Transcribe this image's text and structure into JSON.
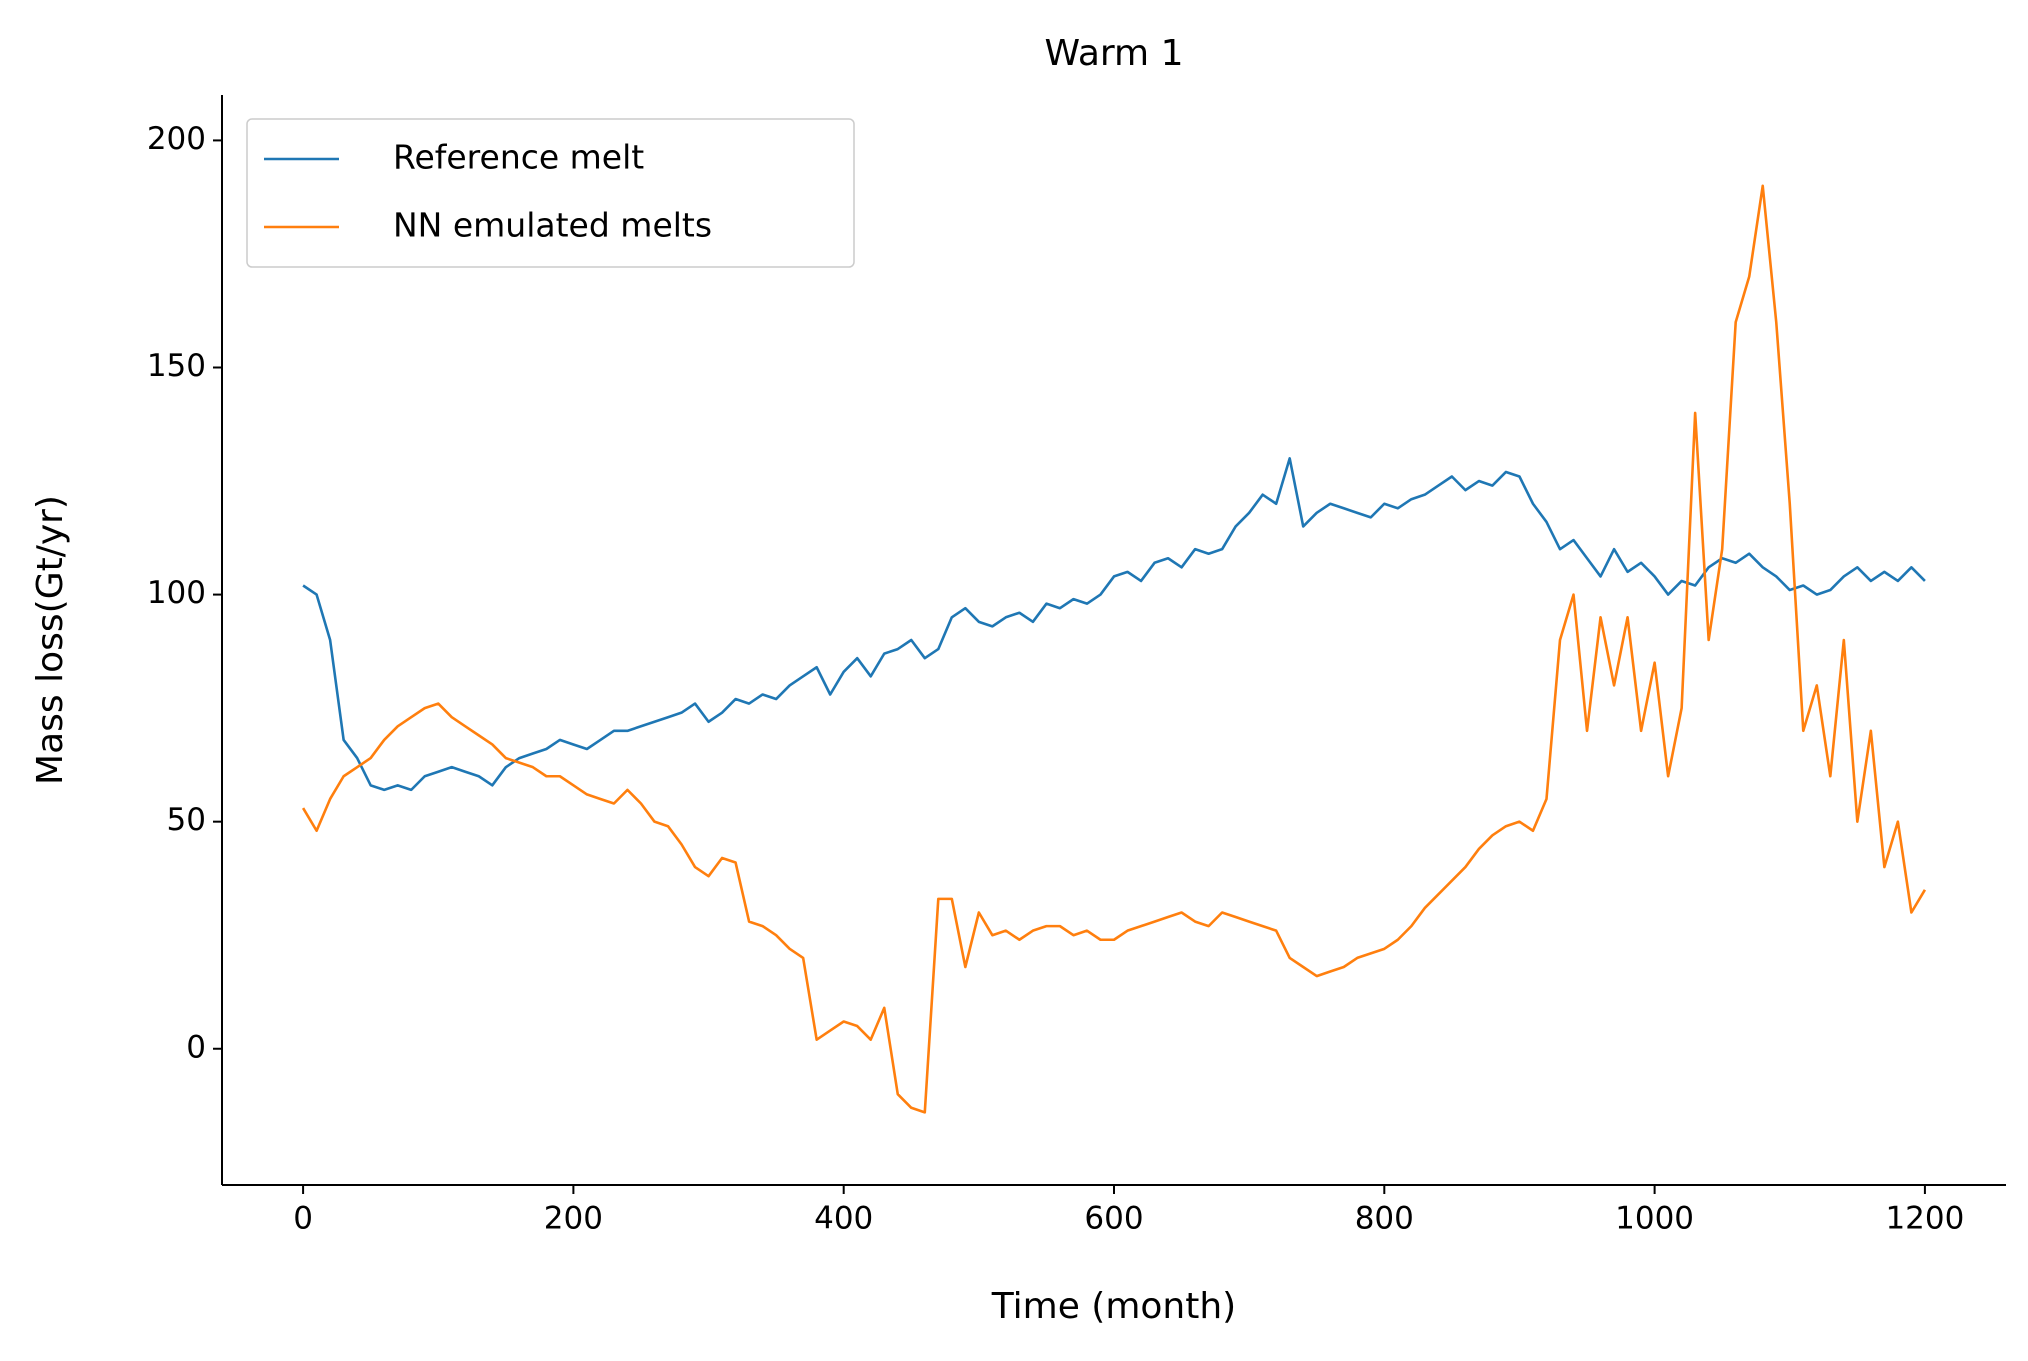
{
  "chart_data": {
    "type": "line",
    "title": "Warm 1",
    "xlabel": "Time (month)",
    "ylabel": "Mass loss(Gt/yr)",
    "x": [
      0,
      10,
      20,
      30,
      40,
      50,
      60,
      70,
      80,
      90,
      100,
      110,
      120,
      130,
      140,
      150,
      160,
      170,
      180,
      190,
      200,
      210,
      220,
      230,
      240,
      250,
      260,
      270,
      280,
      290,
      300,
      310,
      320,
      330,
      340,
      350,
      360,
      370,
      380,
      390,
      400,
      410,
      420,
      430,
      440,
      450,
      460,
      470,
      480,
      490,
      500,
      510,
      520,
      530,
      540,
      550,
      560,
      570,
      580,
      590,
      600,
      610,
      620,
      630,
      640,
      650,
      660,
      670,
      680,
      690,
      700,
      710,
      720,
      730,
      740,
      750,
      760,
      770,
      780,
      790,
      800,
      810,
      820,
      830,
      840,
      850,
      860,
      870,
      880,
      890,
      900,
      910,
      920,
      930,
      940,
      950,
      960,
      970,
      980,
      990,
      1000,
      1010,
      1020,
      1030,
      1040,
      1050,
      1060,
      1070,
      1080,
      1090,
      1100,
      1110,
      1120,
      1130,
      1140,
      1150,
      1160,
      1170,
      1180,
      1190,
      1200
    ],
    "series": [
      {
        "name": "Reference melt",
        "color": "#1f77b4",
        "values": [
          102,
          100,
          90,
          68,
          64,
          58,
          57,
          58,
          57,
          60,
          61,
          62,
          61,
          60,
          58,
          62,
          64,
          65,
          66,
          68,
          67,
          66,
          68,
          70,
          70,
          71,
          72,
          73,
          74,
          76,
          72,
          74,
          77,
          76,
          78,
          77,
          80,
          82,
          84,
          78,
          83,
          86,
          82,
          87,
          88,
          90,
          86,
          88,
          95,
          97,
          94,
          93,
          95,
          96,
          94,
          98,
          97,
          99,
          98,
          100,
          104,
          105,
          103,
          107,
          108,
          106,
          110,
          109,
          110,
          115,
          118,
          122,
          120,
          130,
          115,
          118,
          120,
          119,
          118,
          117,
          120,
          119,
          121,
          122,
          124,
          126,
          123,
          125,
          124,
          127,
          126,
          120,
          116,
          110,
          112,
          108,
          104,
          110,
          105,
          107,
          104,
          100,
          103,
          102,
          106,
          108,
          107,
          109,
          106,
          104,
          101,
          102,
          100,
          101,
          104,
          106,
          103,
          105,
          103,
          106,
          103
        ]
      },
      {
        "name": "NN emulated melts",
        "color": "#ff7f0e",
        "values": [
          53,
          48,
          55,
          60,
          62,
          64,
          68,
          71,
          73,
          75,
          76,
          73,
          71,
          69,
          67,
          64,
          63,
          62,
          60,
          60,
          58,
          56,
          55,
          54,
          57,
          54,
          50,
          49,
          45,
          40,
          38,
          42,
          41,
          28,
          27,
          25,
          22,
          20,
          2,
          4,
          6,
          5,
          2,
          9,
          -10,
          -13,
          -14,
          33,
          33,
          18,
          30,
          25,
          26,
          24,
          26,
          27,
          27,
          25,
          26,
          24,
          24,
          26,
          27,
          28,
          29,
          30,
          28,
          27,
          30,
          29,
          28,
          27,
          26,
          20,
          18,
          16,
          17,
          18,
          20,
          21,
          22,
          24,
          27,
          31,
          34,
          37,
          40,
          44,
          47,
          49,
          50,
          48,
          55,
          90,
          100,
          70,
          95,
          80,
          95,
          70,
          85,
          60,
          75,
          140,
          90,
          110,
          160,
          170,
          190,
          160,
          120,
          70,
          80,
          60,
          90,
          50,
          70,
          40,
          50,
          30,
          35
        ]
      }
    ],
    "xlim": [
      -60,
      1260
    ],
    "ylim": [
      -30,
      210
    ],
    "xticks": [
      0,
      200,
      400,
      600,
      800,
      1000,
      1200
    ],
    "yticks": [
      0,
      50,
      100,
      150,
      200
    ],
    "legend": "upper left"
  }
}
